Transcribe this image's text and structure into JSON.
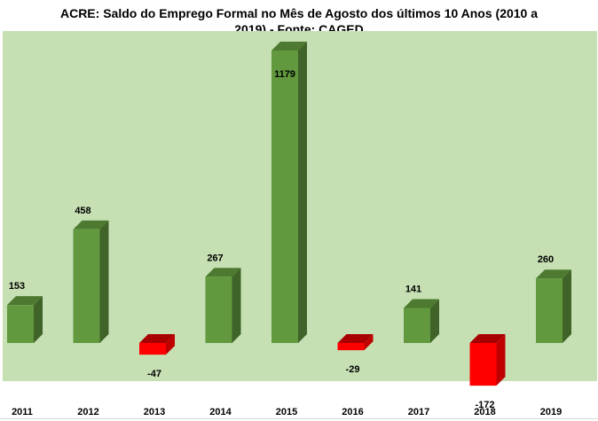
{
  "chart_data": {
    "type": "bar",
    "title_line1": "ACRE: Saldo do Emprego Formal no Mês de Agosto dos últimos 10 Anos (2010 a",
    "title_line2": "2019) -  Fonte: CAGED",
    "categories": [
      "2011",
      "2012",
      "2013",
      "2014",
      "2015",
      "2016",
      "2017",
      "2018",
      "2019"
    ],
    "values": [
      153,
      458,
      -47,
      267,
      1179,
      -29,
      141,
      -172,
      260
    ],
    "data_labels": [
      "153",
      "458",
      "-47",
      "267",
      "1179",
      "-29",
      "141",
      "-172",
      "260"
    ],
    "xlabel": "",
    "ylabel": "",
    "grid": false,
    "legend": "none",
    "colors": {
      "positive_front": "#62993e",
      "positive_side": "#3f6328",
      "positive_top": "#4d7a30",
      "negative_front": "#ff0000",
      "negative_side": "#c00000",
      "negative_top": "#a80000",
      "plot_background": "#c6e0b4"
    }
  }
}
